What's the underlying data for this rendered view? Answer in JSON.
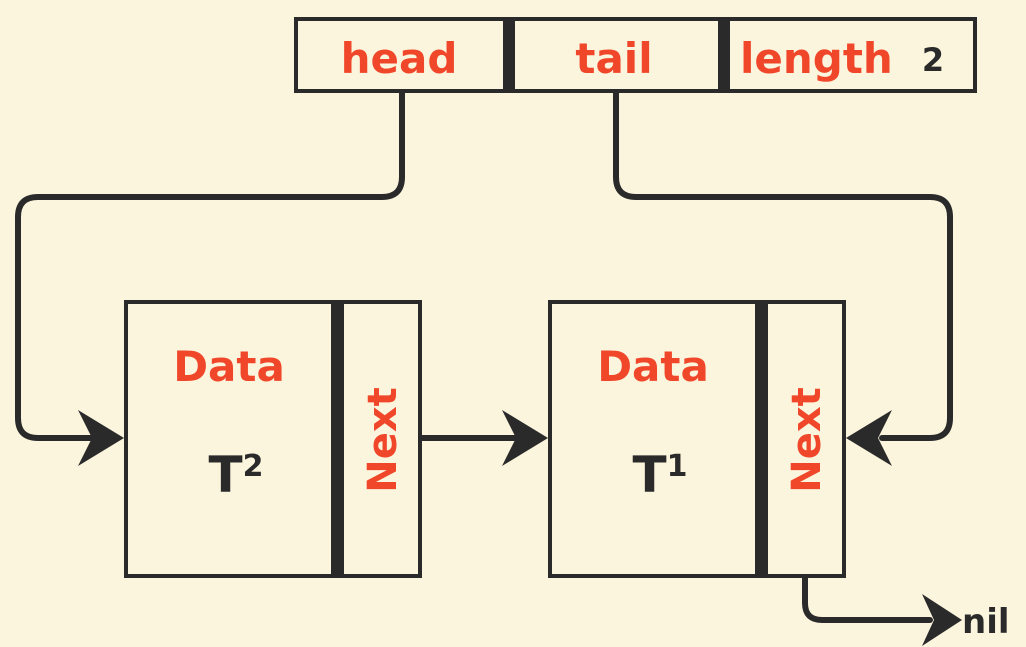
{
  "list_header": {
    "head_label": "head",
    "tail_label": "tail",
    "length_label": "length",
    "length_value": "2"
  },
  "nodes": [
    {
      "data_label": "Data",
      "value_base": "T",
      "value_sup": "2",
      "next_label": "Next"
    },
    {
      "data_label": "Data",
      "value_base": "T",
      "value_sup": "1",
      "next_label": "Next"
    }
  ],
  "terminal": {
    "label": "nil"
  },
  "colors": {
    "background": "#fcf5de",
    "label": "#f0472a",
    "ink": "#2a2a2a"
  }
}
